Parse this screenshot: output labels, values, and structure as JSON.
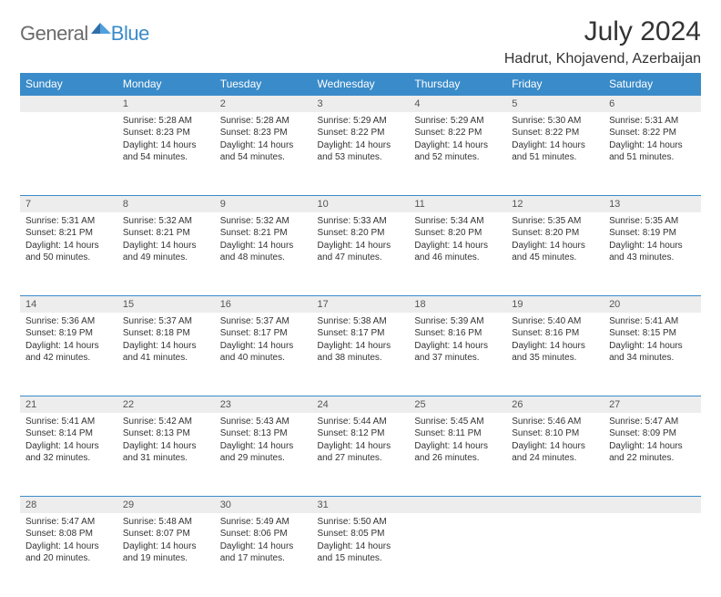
{
  "brand": {
    "part1": "General",
    "part2": "Blue"
  },
  "title": "July 2024",
  "location": "Hadrut, Khojavend, Azerbaijan",
  "colors": {
    "header_bg": "#3a8bc9",
    "header_text": "#ffffff",
    "day_num_bg": "#ededed",
    "body_text": "#333333",
    "page_bg": "#ffffff"
  },
  "day_headers": [
    "Sunday",
    "Monday",
    "Tuesday",
    "Wednesday",
    "Thursday",
    "Friday",
    "Saturday"
  ],
  "weeks": [
    [
      null,
      {
        "n": "1",
        "sr": "5:28 AM",
        "ss": "8:23 PM",
        "dl": "14 hours and 54 minutes."
      },
      {
        "n": "2",
        "sr": "5:28 AM",
        "ss": "8:23 PM",
        "dl": "14 hours and 54 minutes."
      },
      {
        "n": "3",
        "sr": "5:29 AM",
        "ss": "8:22 PM",
        "dl": "14 hours and 53 minutes."
      },
      {
        "n": "4",
        "sr": "5:29 AM",
        "ss": "8:22 PM",
        "dl": "14 hours and 52 minutes."
      },
      {
        "n": "5",
        "sr": "5:30 AM",
        "ss": "8:22 PM",
        "dl": "14 hours and 51 minutes."
      },
      {
        "n": "6",
        "sr": "5:31 AM",
        "ss": "8:22 PM",
        "dl": "14 hours and 51 minutes."
      }
    ],
    [
      {
        "n": "7",
        "sr": "5:31 AM",
        "ss": "8:21 PM",
        "dl": "14 hours and 50 minutes."
      },
      {
        "n": "8",
        "sr": "5:32 AM",
        "ss": "8:21 PM",
        "dl": "14 hours and 49 minutes."
      },
      {
        "n": "9",
        "sr": "5:32 AM",
        "ss": "8:21 PM",
        "dl": "14 hours and 48 minutes."
      },
      {
        "n": "10",
        "sr": "5:33 AM",
        "ss": "8:20 PM",
        "dl": "14 hours and 47 minutes."
      },
      {
        "n": "11",
        "sr": "5:34 AM",
        "ss": "8:20 PM",
        "dl": "14 hours and 46 minutes."
      },
      {
        "n": "12",
        "sr": "5:35 AM",
        "ss": "8:20 PM",
        "dl": "14 hours and 45 minutes."
      },
      {
        "n": "13",
        "sr": "5:35 AM",
        "ss": "8:19 PM",
        "dl": "14 hours and 43 minutes."
      }
    ],
    [
      {
        "n": "14",
        "sr": "5:36 AM",
        "ss": "8:19 PM",
        "dl": "14 hours and 42 minutes."
      },
      {
        "n": "15",
        "sr": "5:37 AM",
        "ss": "8:18 PM",
        "dl": "14 hours and 41 minutes."
      },
      {
        "n": "16",
        "sr": "5:37 AM",
        "ss": "8:17 PM",
        "dl": "14 hours and 40 minutes."
      },
      {
        "n": "17",
        "sr": "5:38 AM",
        "ss": "8:17 PM",
        "dl": "14 hours and 38 minutes."
      },
      {
        "n": "18",
        "sr": "5:39 AM",
        "ss": "8:16 PM",
        "dl": "14 hours and 37 minutes."
      },
      {
        "n": "19",
        "sr": "5:40 AM",
        "ss": "8:16 PM",
        "dl": "14 hours and 35 minutes."
      },
      {
        "n": "20",
        "sr": "5:41 AM",
        "ss": "8:15 PM",
        "dl": "14 hours and 34 minutes."
      }
    ],
    [
      {
        "n": "21",
        "sr": "5:41 AM",
        "ss": "8:14 PM",
        "dl": "14 hours and 32 minutes."
      },
      {
        "n": "22",
        "sr": "5:42 AM",
        "ss": "8:13 PM",
        "dl": "14 hours and 31 minutes."
      },
      {
        "n": "23",
        "sr": "5:43 AM",
        "ss": "8:13 PM",
        "dl": "14 hours and 29 minutes."
      },
      {
        "n": "24",
        "sr": "5:44 AM",
        "ss": "8:12 PM",
        "dl": "14 hours and 27 minutes."
      },
      {
        "n": "25",
        "sr": "5:45 AM",
        "ss": "8:11 PM",
        "dl": "14 hours and 26 minutes."
      },
      {
        "n": "26",
        "sr": "5:46 AM",
        "ss": "8:10 PM",
        "dl": "14 hours and 24 minutes."
      },
      {
        "n": "27",
        "sr": "5:47 AM",
        "ss": "8:09 PM",
        "dl": "14 hours and 22 minutes."
      }
    ],
    [
      {
        "n": "28",
        "sr": "5:47 AM",
        "ss": "8:08 PM",
        "dl": "14 hours and 20 minutes."
      },
      {
        "n": "29",
        "sr": "5:48 AM",
        "ss": "8:07 PM",
        "dl": "14 hours and 19 minutes."
      },
      {
        "n": "30",
        "sr": "5:49 AM",
        "ss": "8:06 PM",
        "dl": "14 hours and 17 minutes."
      },
      {
        "n": "31",
        "sr": "5:50 AM",
        "ss": "8:05 PM",
        "dl": "14 hours and 15 minutes."
      },
      null,
      null,
      null
    ]
  ],
  "labels": {
    "sunrise": "Sunrise:",
    "sunset": "Sunset:",
    "daylight": "Daylight:"
  }
}
